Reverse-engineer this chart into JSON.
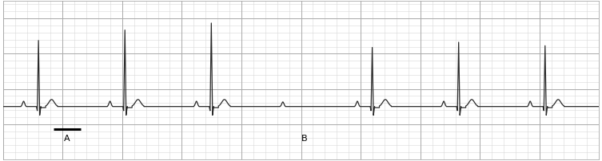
{
  "fig_width": 7.53,
  "fig_height": 2.03,
  "dpi": 100,
  "bg_color": "#ffffff",
  "grid_major_color": "#aaaaaa",
  "grid_minor_color": "#d8d8d8",
  "ecg_color": "#2a2a2a",
  "ecg_linewidth": 0.9,
  "annotation_fontsize": 8,
  "xlim": [
    0,
    10
  ],
  "ylim": [
    -1.5,
    3.0
  ],
  "baseline_y": 0.0,
  "major_grid_step_x": 1.0,
  "major_grid_step_y": 1.0,
  "minor_grid_step_x": 0.2,
  "minor_grid_step_y": 0.2
}
